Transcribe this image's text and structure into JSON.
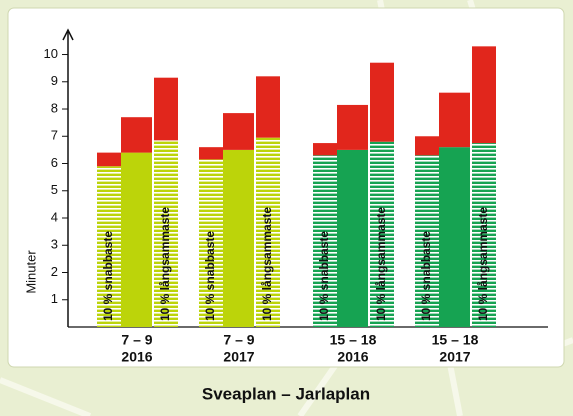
{
  "chart_data": {
    "type": "stacked-bar",
    "title": "Sveaplan – Jarlaplan",
    "y_label": "Minuter",
    "categories": [
      [
        "7 – 9",
        "2016"
      ],
      [
        "7 – 9",
        "2017"
      ],
      [
        "15 – 18",
        "2016"
      ],
      [
        "15 – 18",
        "2017"
      ]
    ],
    "group_colors": [
      "#bcd40a",
      "#bcd40a",
      "#16a352",
      "#16a352"
    ],
    "top_color": "#e1261c",
    "bars": [
      {
        "name": "10 % snabbaste",
        "pattern": "striped",
        "base": [
          5.9,
          6.15,
          6.3,
          6.3
        ],
        "top": [
          0.5,
          0.45,
          0.45,
          0.7
        ]
      },
      {
        "pattern": "solid",
        "base": [
          6.4,
          6.5,
          6.5,
          6.6
        ],
        "top": [
          1.3,
          1.35,
          1.65,
          2.0
        ]
      },
      {
        "name": "10 % långsammaste",
        "pattern": "striped",
        "base": [
          6.85,
          6.95,
          6.8,
          6.75
        ],
        "top": [
          2.3,
          2.25,
          2.9,
          3.55
        ]
      }
    ],
    "ylim": [
      0,
      10.9
    ],
    "yticks": [
      1,
      2,
      3,
      4,
      5,
      6,
      7,
      8,
      9,
      10
    ]
  }
}
